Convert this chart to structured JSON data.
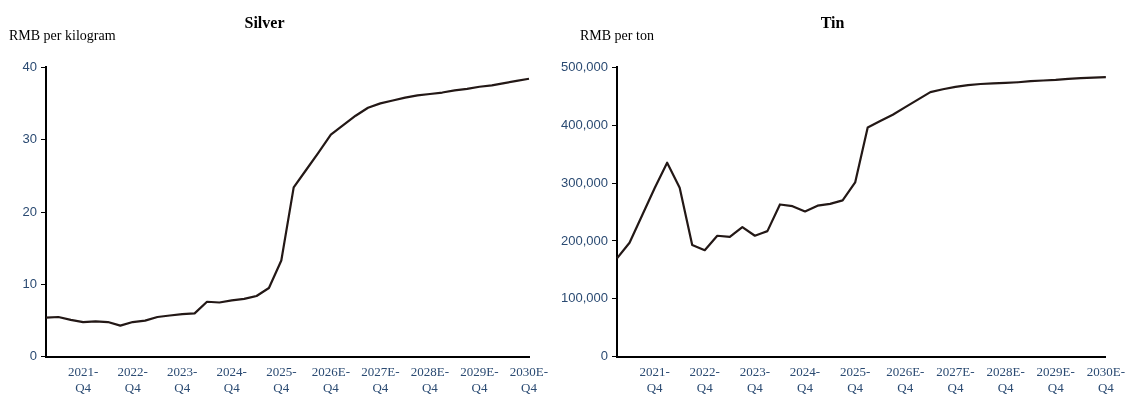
{
  "chart_data": [
    {
      "type": "line",
      "title": "Silver",
      "ylabel": "RMB per kilogram",
      "categories": [
        null,
        null,
        null,
        "2021-Q4",
        null,
        null,
        null,
        "2022-Q4",
        null,
        null,
        null,
        "2023-Q4",
        null,
        null,
        null,
        "2024-Q4",
        null,
        null,
        null,
        "2025-Q4",
        null,
        null,
        null,
        "2026E-Q4",
        null,
        null,
        null,
        "2027E-Q4",
        null,
        null,
        null,
        "2028E-Q4",
        null,
        null,
        null,
        "2029E-Q4",
        null,
        null,
        null,
        "2030E-Q4"
      ],
      "series": [
        {
          "color": "#231816",
          "values": [
            5.4,
            5.5,
            5.1,
            4.8,
            4.9,
            4.8,
            4.3,
            4.8,
            5.0,
            5.5,
            5.7,
            5.9,
            6.0,
            7.6,
            7.5,
            7.8,
            8.0,
            8.4,
            9.5,
            13.3,
            23.4,
            25.8,
            28.2,
            30.7,
            32.0,
            33.3,
            34.4,
            35.0,
            35.4,
            35.8,
            36.1,
            36.3,
            36.5,
            36.8,
            37.0,
            37.3,
            37.5,
            37.8,
            38.1,
            38.4
          ]
        }
      ],
      "ylim": [
        0,
        40
      ],
      "yticks": [
        0,
        10,
        20,
        30,
        40
      ],
      "grid": false,
      "legend": false,
      "marker": "none"
    },
    {
      "type": "line",
      "title": "Tin",
      "ylabel": "RMB per ton",
      "categories": [
        null,
        null,
        null,
        "2021-Q4",
        null,
        null,
        null,
        "2022-Q4",
        null,
        null,
        null,
        "2023-Q4",
        null,
        null,
        null,
        "2024-Q4",
        null,
        null,
        null,
        "2025-Q4",
        null,
        null,
        null,
        "2026E-Q4",
        null,
        null,
        null,
        "2027E-Q4",
        null,
        null,
        null,
        "2028E-Q4",
        null,
        null,
        null,
        "2029E-Q4",
        null,
        null,
        null,
        "2030E-Q4"
      ],
      "series": [
        {
          "color": "#231816",
          "values": [
            170000,
            197000,
            244000,
            291000,
            335000,
            292000,
            193000,
            184000,
            209000,
            207000,
            224000,
            209000,
            217000,
            263000,
            260000,
            251000,
            261000,
            264000,
            270000,
            301000,
            396000,
            407000,
            418000,
            431000,
            444000,
            457000,
            462000,
            466000,
            469000,
            471000,
            472000,
            473000,
            474000,
            476000,
            477000,
            478000,
            480000,
            481000,
            482000,
            483000
          ]
        }
      ],
      "ylim": [
        0,
        500000
      ],
      "yticks": [
        0,
        {
          "value": 100000,
          "label": "100,000"
        },
        {
          "value": 200000,
          "label": "200,000"
        },
        {
          "value": 300000,
          "label": "300,000"
        },
        {
          "value": 400000,
          "label": "400,000"
        },
        {
          "value": 500000,
          "label": "500,000"
        }
      ],
      "grid": false,
      "legend": false,
      "marker": "none"
    }
  ]
}
